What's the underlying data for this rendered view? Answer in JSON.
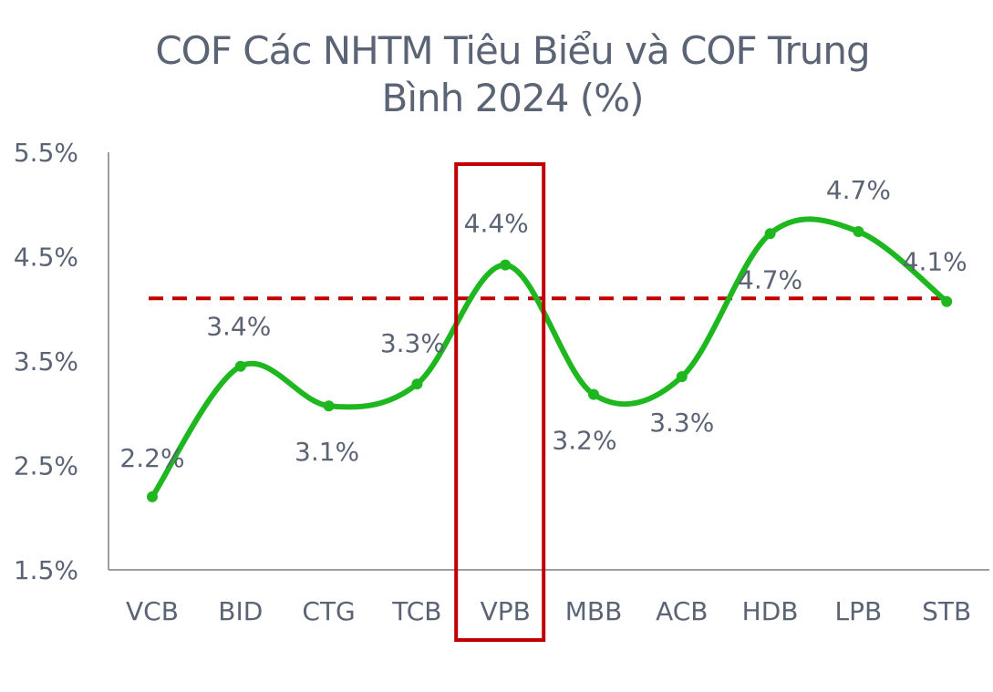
{
  "chart_data": {
    "type": "line",
    "title_line1": "COF Các NHTM Tiêu Biểu và COF Trung",
    "title_line2": "Bình 2024 (%)",
    "categories": [
      "VCB",
      "BID",
      "CTG",
      "TCB",
      "VPB",
      "MBB",
      "ACB",
      "HDB",
      "LPB",
      "STB"
    ],
    "values": [
      2.2,
      3.45,
      3.07,
      3.28,
      4.42,
      3.18,
      3.35,
      4.72,
      4.74,
      4.07
    ],
    "data_labels": [
      "2.2%",
      "3.4%",
      "3.1%",
      "3.3%",
      "4.4%",
      "3.2%",
      "3.3%",
      "4.7%",
      "4.7%",
      "4.1%"
    ],
    "yticks": [
      1.5,
      2.5,
      3.5,
      4.5,
      5.5
    ],
    "ytick_labels": [
      "1.5%",
      "2.5%",
      "3.5%",
      "4.5%",
      "5.5%"
    ],
    "ylim": [
      1.5,
      5.5
    ],
    "average_line": 4.1,
    "highlight_category": "VPB",
    "colors": {
      "line": "#1fb71f",
      "average": "#c00000",
      "highlight": "#c00000",
      "text": "#5b6474",
      "axis": "#7f7f7f"
    }
  }
}
